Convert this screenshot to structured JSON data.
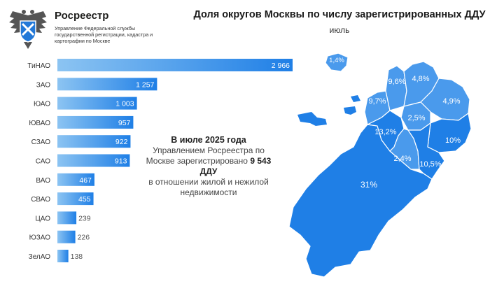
{
  "header": {
    "org_name": "Росреестр",
    "org_subtitle": "Управление Федеральной службы государственной регистрации, кадастра и картографии по Москве",
    "title": "Доля округов Москвы по числу зарегистрированных ДДУ",
    "subtitle": "июль"
  },
  "info": {
    "line1": "В июле 2025 года",
    "line2": "Управлением Росреестра по Москве зарегистрировано",
    "highlight": "9 543 ДДУ",
    "line3": "в отношении жилой и нежилой недвижимости"
  },
  "colors": {
    "bar_light": "#8cc4f2",
    "bar_dark": "#1f7fe6",
    "map_dark": "#1f7fe6",
    "map_light": "#4a9aec"
  },
  "chart_data": [
    {
      "type": "bar",
      "orientation": "horizontal",
      "categories": [
        "ТиНАО",
        "ЗАО",
        "ЮАО",
        "ЮВАО",
        "СЗАО",
        "САО",
        "ВАО",
        "СВАО",
        "ЦАО",
        "ЮЗАО",
        "ЗелАО"
      ],
      "values": [
        2966,
        1257,
        1003,
        957,
        922,
        913,
        467,
        455,
        239,
        226,
        138
      ],
      "value_labels": [
        "2 966",
        "1 257",
        "1 003",
        "957",
        "922",
        "913",
        "467",
        "455",
        "239",
        "226",
        "138"
      ],
      "xlim": [
        0,
        2966
      ],
      "grid": false,
      "legend": "none"
    },
    {
      "type": "map",
      "regions": [
        {
          "name": "ЗелАО",
          "share": "1,4%"
        },
        {
          "name": "САО",
          "share": "9,6%"
        },
        {
          "name": "СВАО",
          "share": "4,8%"
        },
        {
          "name": "СЗАО",
          "share": "9,7%"
        },
        {
          "name": "ВАО",
          "share": "4,9%"
        },
        {
          "name": "ЦАО",
          "share": "2,5%"
        },
        {
          "name": "ЗАО",
          "share": "13,2%"
        },
        {
          "name": "ЮВАО",
          "share": "10%"
        },
        {
          "name": "ЮЗАО",
          "share": "2,4%"
        },
        {
          "name": "ЮАО",
          "share": "10,5%"
        },
        {
          "name": "ТиНАО",
          "share": "31%"
        }
      ]
    }
  ]
}
